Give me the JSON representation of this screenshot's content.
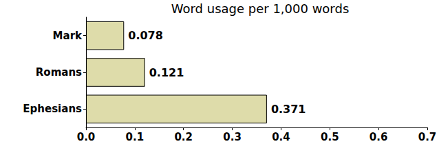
{
  "chart_data": {
    "type": "bar",
    "title": "Word usage per 1,000 words",
    "orientation": "horizontal",
    "categories": [
      "Mark",
      "Romans",
      "Ephesians"
    ],
    "values": [
      0.078,
      0.121,
      0.371
    ],
    "color": "#dedcaa",
    "xlim": [
      0,
      0.7
    ],
    "xticks": [
      {
        "value": 0,
        "label": "0.0"
      },
      0.1,
      0.2,
      0.3,
      0.4,
      0.5,
      0.6,
      0.7
    ],
    "grid": false,
    "data_labels": true
  }
}
